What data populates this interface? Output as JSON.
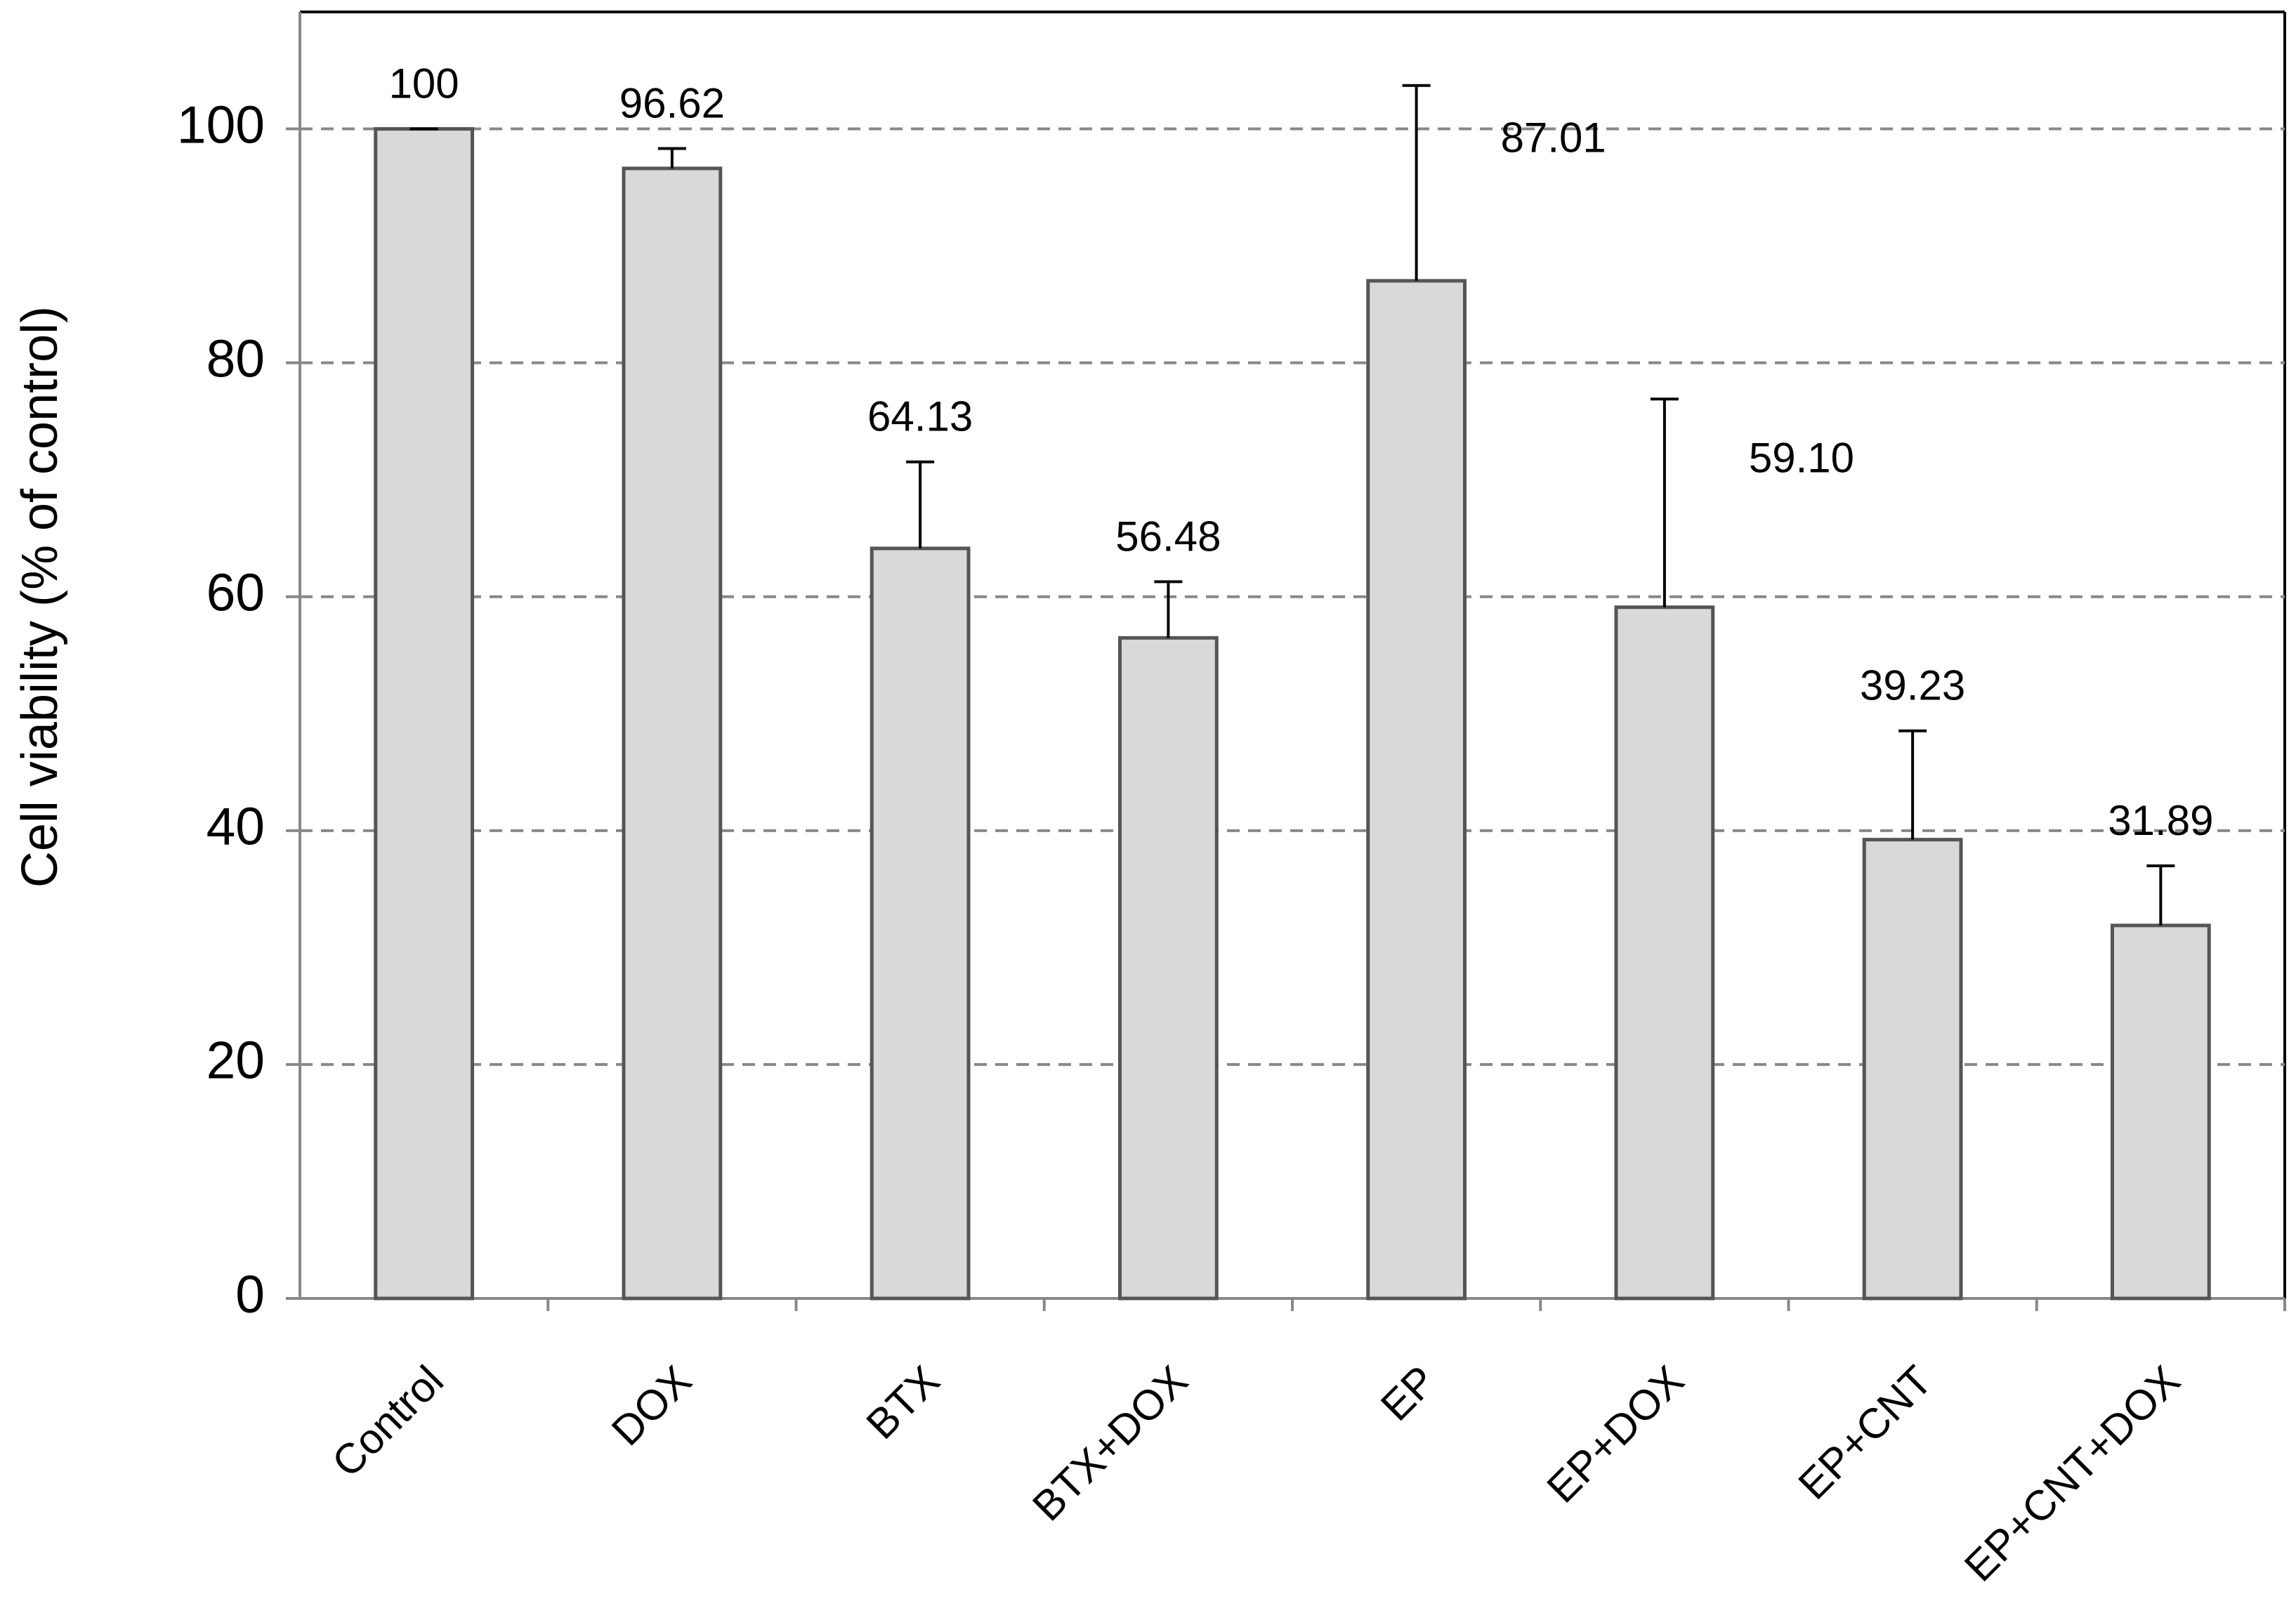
{
  "chart_data": {
    "type": "bar",
    "y_label": "Cell viability (% of control)",
    "categories": [
      "Control",
      "DOX",
      "BTX",
      "BTX+DOX",
      "EP",
      "EP+DOX",
      "EP+CNT",
      "EP+CNT+DOX"
    ],
    "values": [
      100,
      96.62,
      64.13,
      56.48,
      87.01,
      59.1,
      39.23,
      31.89
    ],
    "value_labels": [
      "100",
      "96.62",
      "64.13",
      "56.48",
      "87.01",
      "59.10",
      "39.23",
      "31.89"
    ],
    "errors": [
      0,
      1.7,
      7.4,
      4.8,
      16.7,
      17.8,
      9.3,
      5.1
    ],
    "color": "#d9d9d9",
    "ylim": [
      0,
      110
    ],
    "yticks": [
      0,
      20,
      40,
      60,
      80,
      100
    ],
    "grid": true
  }
}
